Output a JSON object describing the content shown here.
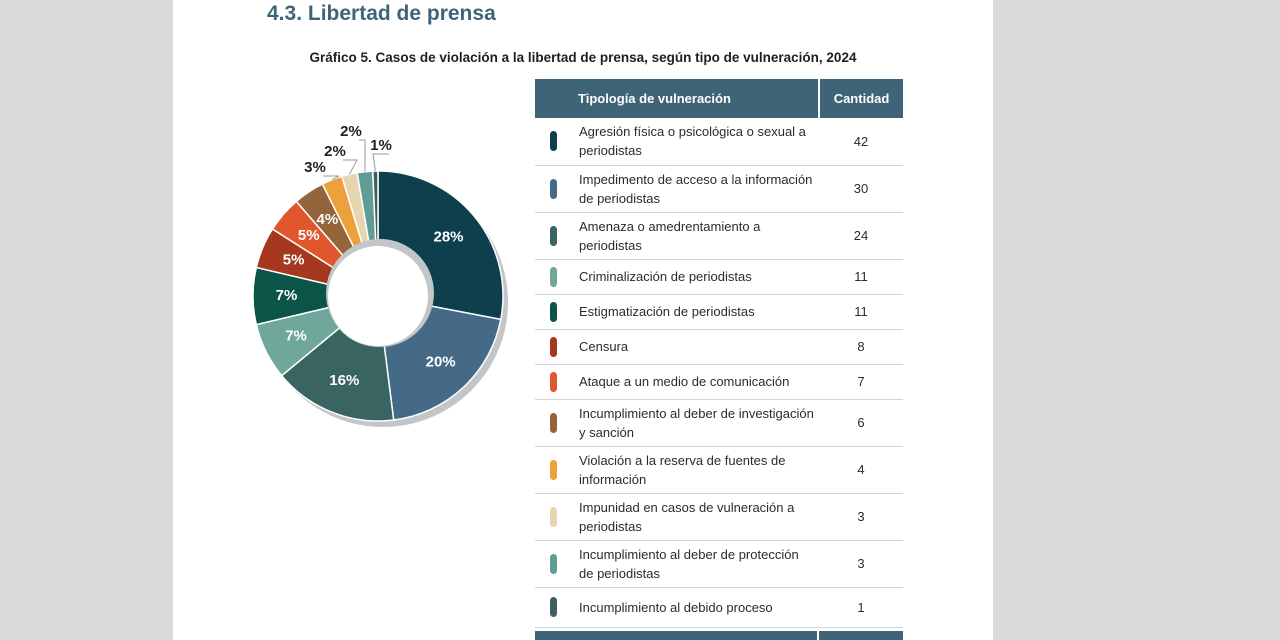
{
  "section_title": "4.3. Libertad de prensa",
  "chart_data": {
    "type": "pie",
    "title": "Gráfico 5. Casos de violación a la libertad de prensa, según tipo de vulneración, 2024",
    "table_headers": [
      "Tipología de vulneración",
      "Cantidad"
    ],
    "categories": [
      "Agresión física o psicológica o sexual a periodistas",
      "Impedimento de acceso a la información de periodistas",
      "Amenaza o amedrentamiento a periodistas",
      "Criminalización de periodistas",
      "Estigmatización de periodistas",
      "Censura",
      "Ataque a un medio de comunicación",
      "Incumplimiento al deber de investigación y sanción",
      "Violación a la reserva de fuentes de información",
      "Impunidad en casos de vulneración a periodistas",
      "Incumplimiento al deber de protección de periodistas",
      "Incumplimiento al debido proceso"
    ],
    "values": [
      42,
      30,
      24,
      11,
      11,
      8,
      7,
      6,
      4,
      3,
      3,
      1
    ],
    "value_labels": [
      "42",
      "30",
      "24",
      "11",
      "11",
      "8",
      "7",
      "6",
      "4",
      "3",
      "3",
      "1"
    ],
    "percent_labels": [
      "28%",
      "20%",
      "16%",
      "7%",
      "7%",
      "5%",
      "5%",
      "4%",
      "3%",
      "2%",
      "2%",
      "1%"
    ],
    "colors": [
      "#0d3f4c",
      "#456a87",
      "#3a6461",
      "#6fa89b",
      "#0a5448",
      "#a63820",
      "#e0562d",
      "#94643a",
      "#eda13d",
      "#e6d6b0",
      "#5f9c93",
      "#3f5f62"
    ],
    "label_colors": [
      "#ffffff",
      "#ffffff",
      "#ffffff",
      "#ffffff",
      "#ffffff",
      "#ffffff",
      "#ffffff",
      "#ffffff",
      "#1f1f1f",
      "#1f1f1f",
      "#1f1f1f",
      "#1f1f1f"
    ],
    "label_placement": [
      "inside",
      "inside",
      "inside",
      "inside",
      "inside",
      "inside",
      "inside",
      "inside",
      "outside",
      "outside",
      "outside",
      "outside"
    ],
    "legend_placement": "right"
  }
}
